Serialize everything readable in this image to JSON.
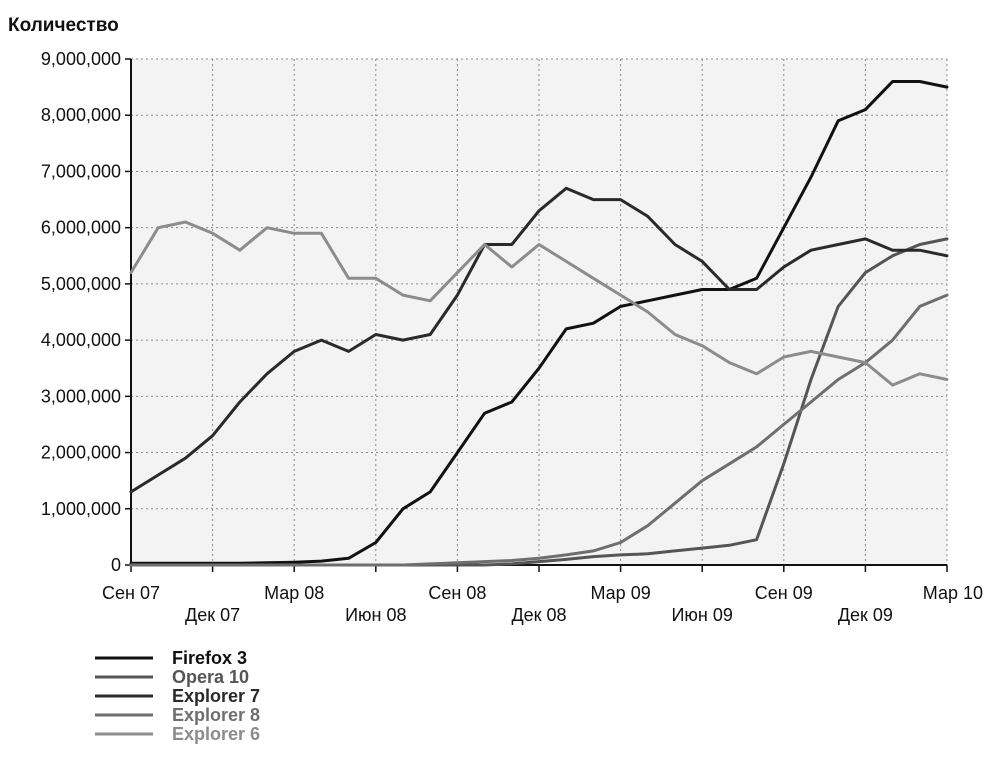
{
  "chart_data": {
    "type": "line",
    "ylabel": "Количество",
    "xlabel": "",
    "title": "",
    "ylim": [
      0,
      9000000
    ],
    "yticks": [
      0,
      1000000,
      2000000,
      3000000,
      4000000,
      5000000,
      6000000,
      7000000,
      8000000,
      9000000
    ],
    "ytick_labels": [
      "0",
      "1,000,000",
      "2,000,000",
      "3,000,000",
      "4,000,000",
      "5,000,000",
      "6,000,000",
      "7,000,000",
      "8,000,000",
      "9,000,000"
    ],
    "x": [
      "2007-09",
      "2007-10",
      "2007-11",
      "2007-12",
      "2008-01",
      "2008-02",
      "2008-03",
      "2008-04",
      "2008-05",
      "2008-06",
      "2008-07",
      "2008-08",
      "2008-09",
      "2008-10",
      "2008-11",
      "2008-12",
      "2009-01",
      "2009-02",
      "2009-03",
      "2009-04",
      "2009-05",
      "2009-06",
      "2009-07",
      "2009-08",
      "2009-09",
      "2009-10",
      "2009-11",
      "2009-12",
      "2010-01",
      "2010-02",
      "2010-03"
    ],
    "xticks": [
      {
        "x": "2007-09",
        "label": "Сен 07",
        "row": 0
      },
      {
        "x": "2007-12",
        "label": "Дек 07",
        "row": 1
      },
      {
        "x": "2008-03",
        "label": "Мар 08",
        "row": 0
      },
      {
        "x": "2008-06",
        "label": "Июн 08",
        "row": 1
      },
      {
        "x": "2008-09",
        "label": "Сен 08",
        "row": 0
      },
      {
        "x": "2008-12",
        "label": "Дек 08",
        "row": 1
      },
      {
        "x": "2009-03",
        "label": "Мар 09",
        "row": 0
      },
      {
        "x": "2009-06",
        "label": "Июн 09",
        "row": 1
      },
      {
        "x": "2009-09",
        "label": "Сен 09",
        "row": 0
      },
      {
        "x": "2009-12",
        "label": "Дек 09",
        "row": 1
      },
      {
        "x": "2010-03",
        "label": "Мар 10",
        "row": 0
      }
    ],
    "grid": true,
    "legend": "bottom-left",
    "series": [
      {
        "name": "Firefox 3",
        "color": "#111111",
        "values": [
          30000,
          30000,
          30000,
          30000,
          30000,
          40000,
          50000,
          70000,
          120000,
          400000,
          1000000,
          1300000,
          2000000,
          2700000,
          2900000,
          3500000,
          4200000,
          4300000,
          4600000,
          4700000,
          4800000,
          4900000,
          4900000,
          5100000,
          6000000,
          6900000,
          7900000,
          8100000,
          8600000,
          8600000,
          8500000
        ]
      },
      {
        "name": "Opera 10",
        "color": "#555555",
        "values": [
          0,
          0,
          0,
          0,
          0,
          0,
          0,
          0,
          0,
          0,
          0,
          0,
          0,
          0,
          20000,
          60000,
          100000,
          150000,
          180000,
          200000,
          250000,
          300000,
          350000,
          450000,
          1800000,
          3300000,
          4600000,
          5200000,
          5500000,
          5700000,
          5800000
        ]
      },
      {
        "name": "Explorer 7",
        "color": "#2a2a2a",
        "values": [
          1300000,
          1600000,
          1900000,
          2300000,
          2900000,
          3400000,
          3800000,
          4000000,
          3800000,
          4100000,
          4000000,
          4100000,
          4800000,
          5700000,
          5700000,
          6300000,
          6700000,
          6500000,
          6500000,
          6200000,
          5700000,
          5400000,
          4900000,
          4900000,
          5300000,
          5600000,
          5700000,
          5800000,
          5600000,
          5600000,
          5500000
        ]
      },
      {
        "name": "Explorer 8",
        "color": "#6e6e6e",
        "values": [
          0,
          0,
          0,
          0,
          0,
          0,
          0,
          0,
          0,
          0,
          0,
          20000,
          40000,
          60000,
          80000,
          120000,
          180000,
          250000,
          400000,
          700000,
          1100000,
          1500000,
          1800000,
          2100000,
          2500000,
          2900000,
          3300000,
          3600000,
          4000000,
          4600000,
          4800000
        ]
      },
      {
        "name": "Explorer 6",
        "color": "#8c8c8c",
        "values": [
          5200000,
          6000000,
          6100000,
          5900000,
          5600000,
          6000000,
          5900000,
          5900000,
          5100000,
          5100000,
          4800000,
          4700000,
          5200000,
          5700000,
          5300000,
          5700000,
          5400000,
          5100000,
          4800000,
          4500000,
          4100000,
          3900000,
          3600000,
          3400000,
          3700000,
          3800000,
          3700000,
          3600000,
          3200000,
          3400000,
          3300000
        ]
      }
    ]
  }
}
